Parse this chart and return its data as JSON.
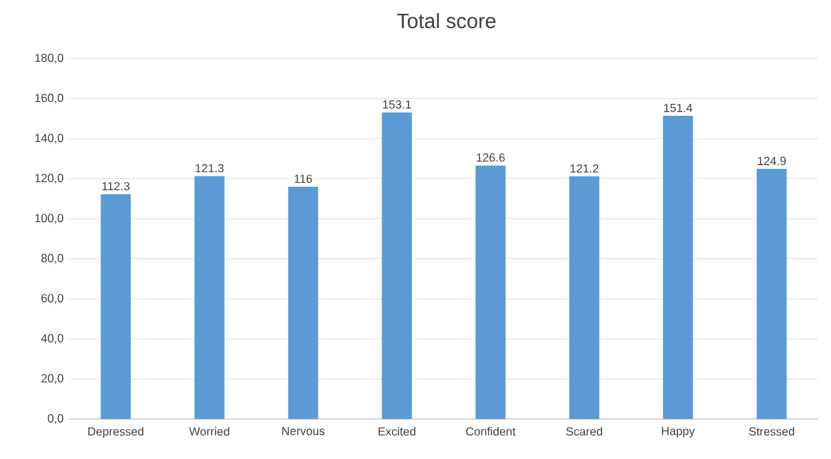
{
  "chart_data": {
    "type": "bar",
    "title": "Total score",
    "categories": [
      "Depressed",
      "Worried",
      "Nervous",
      "Excited",
      "Confident",
      "Scared",
      "Happy",
      "Stressed"
    ],
    "values": [
      112.3,
      121.3,
      116,
      153.1,
      126.6,
      121.2,
      151.4,
      124.9
    ],
    "value_labels": [
      "112.3",
      "121.3",
      "116",
      "153.1",
      "126.6",
      "121.2",
      "151.4",
      "124.9"
    ],
    "color": "#5b9bd5",
    "ylim": [
      0,
      180
    ],
    "yticks": [
      {
        "value": 0,
        "label": "0,0"
      },
      {
        "value": 20,
        "label": "20,0"
      },
      {
        "value": 40,
        "label": "40,0"
      },
      {
        "value": 60,
        "label": "60,0"
      },
      {
        "value": 80,
        "label": "80,0"
      },
      {
        "value": 100,
        "label": "100,0"
      },
      {
        "value": 120,
        "label": "120,0"
      },
      {
        "value": 140,
        "label": "140,0"
      },
      {
        "value": 160,
        "label": "160,0"
      },
      {
        "value": 180,
        "label": "180,0"
      }
    ],
    "grid": "y"
  }
}
